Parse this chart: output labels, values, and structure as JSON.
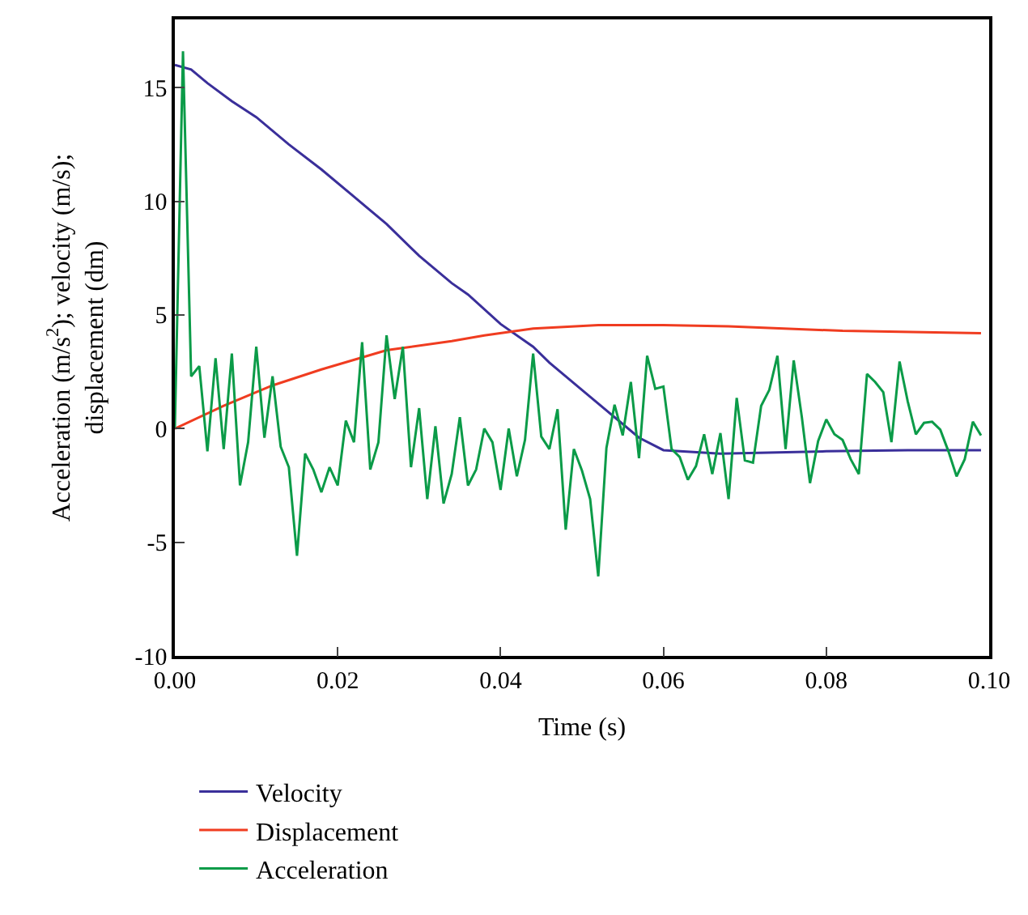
{
  "chart_data": {
    "type": "line",
    "xlabel": "Time (s)",
    "ylabel": "Acceleration (m/s$^{2}$); velocity (m/s);\ndisplacement (dm)",
    "xlim": [
      0,
      0.1
    ],
    "xticks": [
      {
        "value": 0,
        "label": "0.00"
      },
      {
        "value": 0.02,
        "label": "0.02"
      },
      {
        "value": 0.04,
        "label": "0.04"
      },
      {
        "value": 0.06,
        "label": "0.06"
      },
      {
        "value": 0.08,
        "label": "0.08"
      },
      {
        "value": 0.1,
        "label": "0.10"
      }
    ],
    "ylim": [
      -10,
      18
    ],
    "yticks": [
      -10,
      -5,
      0,
      5,
      10,
      15
    ],
    "legend": "bottom",
    "marker": "none",
    "line_style": "solid",
    "series": [
      {
        "name": "Velocity",
        "color": "#3a2f9a",
        "x": [
          0,
          0.002,
          0.004,
          0.007,
          0.01,
          0.014,
          0.018,
          0.022,
          0.026,
          0.03,
          0.034,
          0.036,
          0.04,
          0.044,
          0.046,
          0.05,
          0.054,
          0.057,
          0.06,
          0.067,
          0.08,
          0.09,
          0.099
        ],
        "values": [
          16.0,
          15.8,
          15.2,
          14.4,
          13.7,
          12.5,
          11.4,
          10.2,
          9.0,
          7.6,
          6.4,
          5.9,
          4.6,
          3.6,
          2.9,
          1.7,
          0.5,
          -0.4,
          -0.95,
          -1.1,
          -1.0,
          -0.95,
          -0.95
        ]
      },
      {
        "name": "Displacement",
        "color": "#f03c20",
        "x": [
          0,
          0.006,
          0.012,
          0.018,
          0.026,
          0.034,
          0.038,
          0.044,
          0.052,
          0.06,
          0.068,
          0.082,
          0.099
        ],
        "values": [
          0,
          1.0,
          1.9,
          2.6,
          3.45,
          3.85,
          4.1,
          4.4,
          4.55,
          4.55,
          4.5,
          4.3,
          4.2
        ]
      },
      {
        "name": "Acceleration",
        "color": "#0b9b48",
        "x": [
          0,
          0.001,
          0.002,
          0.003,
          0.004,
          0.005,
          0.006,
          0.007,
          0.008,
          0.009,
          0.01,
          0.011,
          0.012,
          0.013,
          0.014,
          0.015,
          0.016,
          0.017,
          0.018,
          0.019,
          0.02,
          0.021,
          0.022,
          0.023,
          0.024,
          0.025,
          0.026,
          0.027,
          0.028,
          0.029,
          0.03,
          0.031,
          0.032,
          0.033,
          0.034,
          0.035,
          0.036,
          0.037,
          0.038,
          0.039,
          0.04,
          0.041,
          0.042,
          0.043,
          0.044,
          0.045,
          0.046,
          0.047,
          0.048,
          0.049,
          0.05,
          0.051,
          0.052,
          0.053,
          0.054,
          0.055,
          0.056,
          0.057,
          0.058,
          0.059,
          0.06,
          0.061,
          0.062,
          0.063,
          0.064,
          0.065,
          0.066,
          0.067,
          0.068,
          0.069,
          0.07,
          0.071,
          0.072,
          0.073,
          0.074,
          0.075,
          0.076,
          0.077,
          0.078,
          0.079,
          0.08,
          0.081,
          0.082,
          0.083,
          0.084,
          0.085,
          0.086,
          0.087,
          0.088,
          0.089,
          0.09,
          0.091,
          0.092,
          0.093,
          0.094,
          0.095,
          0.096,
          0.097,
          0.098,
          0.099
        ],
        "values": [
          0,
          16.6,
          2.3,
          2.75,
          -1.0,
          3.1,
          -0.9,
          3.3,
          -2.5,
          -0.6,
          3.6,
          -0.4,
          2.3,
          -0.8,
          -1.7,
          -5.6,
          -1.1,
          -1.8,
          -2.8,
          -1.7,
          -2.5,
          0.35,
          -0.6,
          3.8,
          -1.8,
          -0.6,
          4.1,
          1.3,
          3.6,
          -1.7,
          0.9,
          -3.1,
          0.1,
          -3.3,
          -2.0,
          0.5,
          -2.5,
          -1.8,
          0,
          -0.6,
          -2.7,
          0,
          -2.1,
          -0.5,
          3.3,
          -0.35,
          -0.9,
          0.85,
          -4.45,
          -0.9,
          -1.85,
          -3.1,
          -6.5,
          -0.85,
          1.05,
          -0.3,
          2.05,
          -1.3,
          3.2,
          1.75,
          1.85,
          -0.9,
          -1.25,
          -2.25,
          -1.65,
          -0.25,
          -2.0,
          -0.2,
          -3.1,
          1.35,
          -1.4,
          -1.5,
          1.0,
          1.7,
          3.2,
          -0.9,
          3.0,
          0.5,
          -2.4,
          -0.55,
          0.4,
          -0.25,
          -0.5,
          -1.35,
          -2.0,
          2.4,
          2.05,
          1.6,
          -0.6,
          2.95,
          1.2,
          -0.25,
          0.25,
          0.3,
          -0.05,
          -1.0,
          -2.1,
          -1.35,
          0.3,
          -0.3
        ]
      }
    ]
  }
}
